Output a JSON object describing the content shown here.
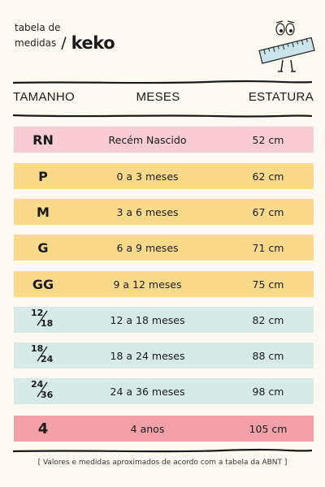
{
  "header": {
    "line1": "tabela de",
    "line2": "medidas",
    "slash": "/",
    "brand": "keko"
  },
  "columns": {
    "size": "TAMANHO",
    "months": "MESES",
    "height": "ESTATURA"
  },
  "rows": [
    {
      "size": "RN",
      "months": "Recém Nascido",
      "height": "52 cm",
      "color": "#f8ccd1"
    },
    {
      "size": "P",
      "months": "0 a 3 meses",
      "height": "62 cm",
      "color": "#fbd98a"
    },
    {
      "size": "M",
      "months": "3 a 6 meses",
      "height": "67 cm",
      "color": "#fbd98a"
    },
    {
      "size": "G",
      "months": "6 a 9 meses",
      "height": "71 cm",
      "color": "#fbd98a"
    },
    {
      "size": "GG",
      "months": "9 a 12 meses",
      "height": "75 cm",
      "color": "#fbd98a"
    },
    {
      "size_num": "12",
      "size_den": "18",
      "months": "12 a 18 meses",
      "height": "82 cm",
      "color": "#d6ebe7"
    },
    {
      "size_num": "18",
      "size_den": "24",
      "months": "18 a 24 meses",
      "height": "88 cm",
      "color": "#d6ebe7"
    },
    {
      "size_num": "24",
      "size_den": "36",
      "months": "24 a 36 meses",
      "height": "98 cm",
      "color": "#d6ebe7"
    },
    {
      "size": "4",
      "months": "4 anos",
      "height": "105 cm",
      "color": "#f1a1a7"
    }
  ],
  "footer": {
    "note": "[ Valores e medidas aproximados de acordo com a tabela da ABNT ]"
  },
  "icons": [
    "ruler-mascot-icon"
  ]
}
